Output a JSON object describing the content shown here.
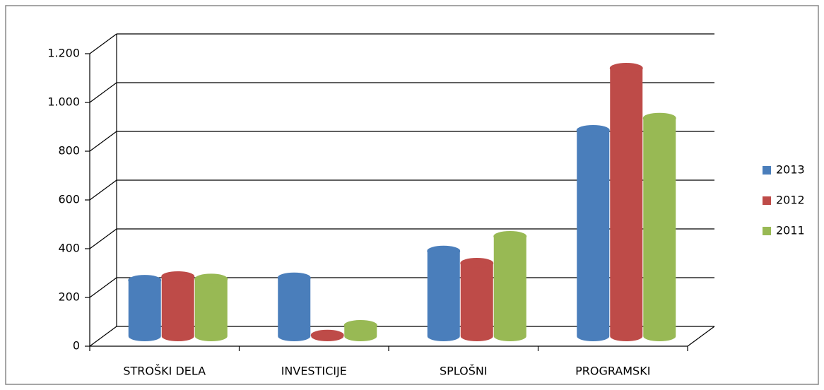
{
  "chart_data": {
    "type": "bar3d",
    "categories": [
      "STROŠKI DELA",
      "INVESTICIJE",
      "SPLOŠNI",
      "PROGRAMSKI"
    ],
    "series": [
      {
        "name": "2013",
        "color": "#4a7ebb",
        "values": [
          230,
          240,
          350,
          845
        ]
      },
      {
        "name": "2012",
        "color": "#be4b48",
        "values": [
          245,
          5,
          300,
          1100
        ]
      },
      {
        "name": "2011",
        "color": "#98b954",
        "values": [
          235,
          45,
          410,
          895
        ]
      }
    ],
    "ylim": [
      0,
      1200
    ],
    "yticks": [
      0,
      200,
      400,
      600,
      800,
      {
        "value": 1000,
        "label": "1.000"
      },
      {
        "value": 1200,
        "label": "1.200"
      }
    ],
    "grid": true,
    "legend": "right"
  }
}
